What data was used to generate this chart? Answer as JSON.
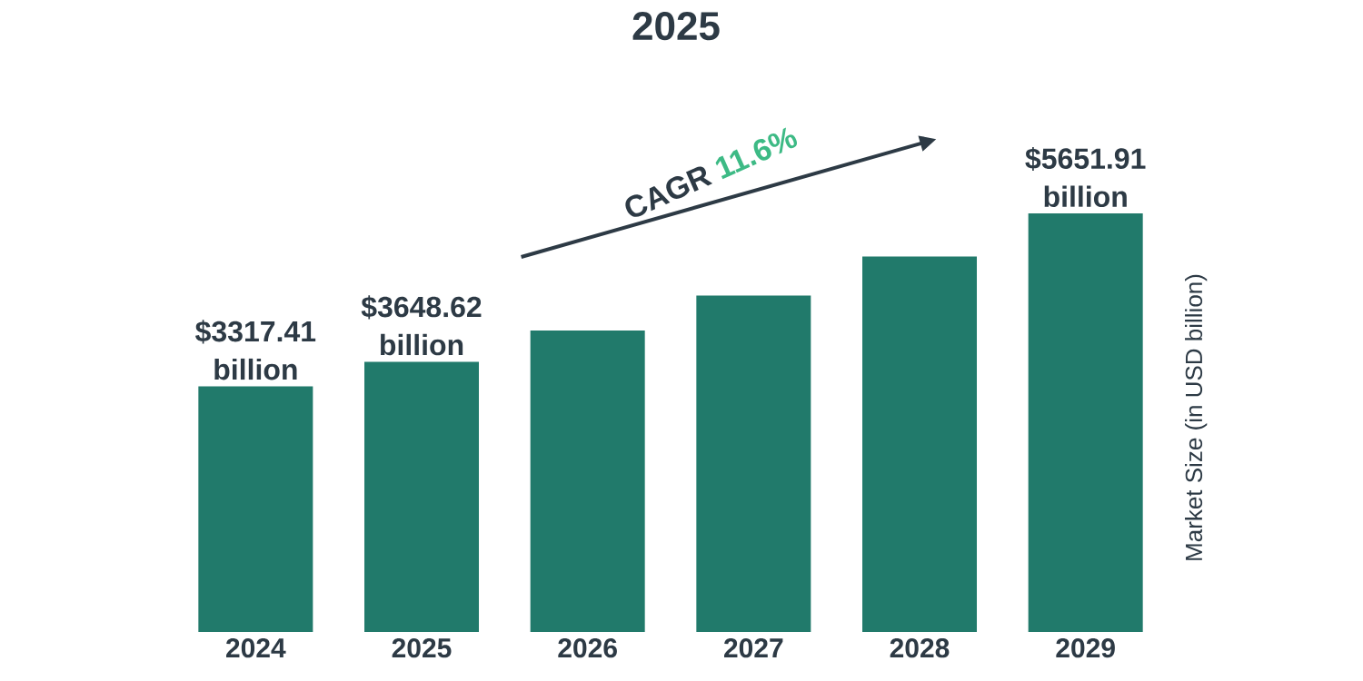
{
  "chart_data": {
    "type": "bar",
    "title": "2025",
    "categories": [
      "2024",
      "2025",
      "2026",
      "2027",
      "2028",
      "2029"
    ],
    "values": [
      3317.41,
      3648.62,
      4072,
      4544,
      5071,
      5651.91
    ],
    "value_labels": [
      "$3317.41 billion",
      "$3648.62 billion",
      null,
      null,
      null,
      "$5651.91 billion"
    ],
    "color": "#217a6b",
    "tick_labels": "x",
    "ylabel": "Market Size (in USD billion)",
    "annotations": [
      "CAGR",
      "11.6%"
    ]
  }
}
